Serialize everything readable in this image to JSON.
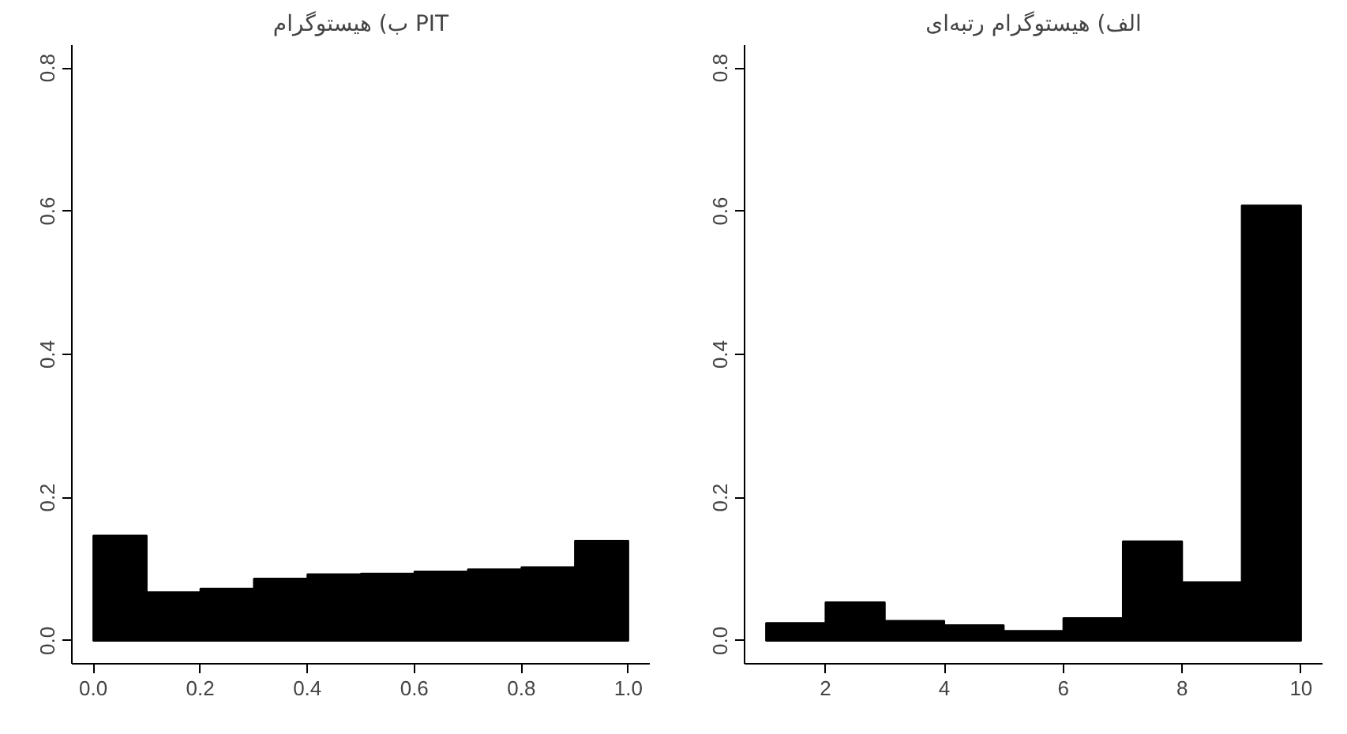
{
  "chart_data": [
    {
      "type": "histogram",
      "title": "ب) هیستوگرام PIT",
      "bins": [
        0,
        0.1,
        0.2,
        0.3,
        0.4,
        0.5,
        0.6,
        0.7,
        0.8,
        0.9,
        1.0
      ],
      "values": [
        0.147,
        0.068,
        0.073,
        0.087,
        0.093,
        0.094,
        0.097,
        0.1,
        0.103,
        0.14
      ],
      "color": "#000000",
      "xlim": [
        -0.04,
        1.04
      ],
      "xticks": [
        {
          "value": 0,
          "label": "0.0"
        },
        0.2,
        0.4,
        0.6,
        0.8,
        {
          "value": 1,
          "label": "1.0"
        }
      ],
      "ylim": [
        -0.032,
        0.832
      ],
      "yticks": [
        {
          "value": 0,
          "label": "0.0"
        },
        0.2,
        0.4,
        0.6,
        0.8
      ],
      "grid": false
    },
    {
      "type": "histogram",
      "title": "الف) هیستوگرام رتبه‌ای",
      "bins": [
        1,
        2,
        3,
        4,
        5,
        6,
        7,
        8,
        9,
        10
      ],
      "values": [
        0.025,
        0.054,
        0.028,
        0.022,
        0.014,
        0.032,
        0.139,
        0.082,
        0.608
      ],
      "color": "#000000",
      "xlim": [
        0.64,
        10.36
      ],
      "xticks": [
        2,
        4,
        6,
        8,
        10
      ],
      "ylim": [
        -0.032,
        0.832
      ],
      "yticks": [
        {
          "value": 0,
          "label": "0.0"
        },
        0.2,
        0.4,
        0.6,
        0.8
      ],
      "grid": false
    }
  ]
}
